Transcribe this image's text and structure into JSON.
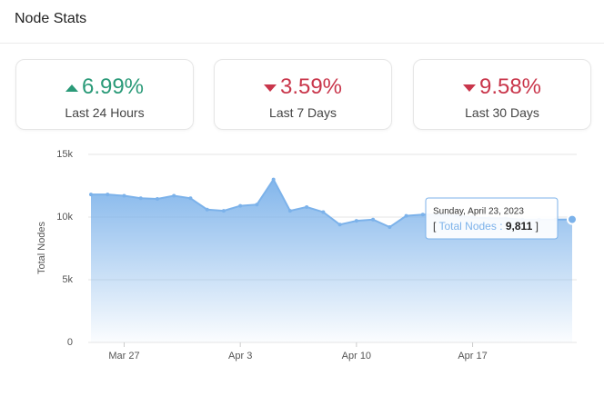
{
  "header": {
    "title": "Node Stats"
  },
  "stats": [
    {
      "value": "6.99%",
      "label": "Last 24 Hours",
      "direction": "up",
      "color": "#2a9a78"
    },
    {
      "value": "3.59%",
      "label": "Last 7 Days",
      "direction": "down",
      "color": "#c9364b"
    },
    {
      "value": "9.58%",
      "label": "Last 30 Days",
      "direction": "down",
      "color": "#c9364b"
    }
  ],
  "chart_data": {
    "type": "area",
    "y_label": "Total Nodes",
    "x": [
      "2023-03-25",
      "2023-03-26",
      "2023-03-27",
      "2023-03-28",
      "2023-03-29",
      "2023-03-30",
      "2023-03-31",
      "2023-04-01",
      "2023-04-02",
      "2023-04-03",
      "2023-04-04",
      "2023-04-05",
      "2023-04-06",
      "2023-04-07",
      "2023-04-08",
      "2023-04-09",
      "2023-04-10",
      "2023-04-11",
      "2023-04-12",
      "2023-04-13",
      "2023-04-14",
      "2023-04-15",
      "2023-04-16",
      "2023-04-17",
      "2023-04-18",
      "2023-04-19",
      "2023-04-20",
      "2023-04-21",
      "2023-04-22",
      "2023-04-23"
    ],
    "series": [
      {
        "name": "Total Nodes",
        "color": "#7cb2ea",
        "values": [
          11800,
          11800,
          11700,
          11500,
          11450,
          11700,
          11500,
          10600,
          10500,
          10900,
          11000,
          13000,
          10500,
          10800,
          10400,
          9400,
          9700,
          9800,
          9200,
          10100,
          10200,
          10200,
          10100,
          10000,
          9900,
          9900,
          9800,
          9800,
          9800,
          9811
        ]
      }
    ],
    "xlim": [
      "2023-03-25",
      "2023-04-23"
    ],
    "xticks": [
      {
        "value": "2023-03-27",
        "label": "Mar 27"
      },
      {
        "value": "2023-04-03",
        "label": "Apr 3"
      },
      {
        "value": "2023-04-10",
        "label": "Apr 10"
      },
      {
        "value": "2023-04-17",
        "label": "Apr 17"
      }
    ],
    "ylim": [
      0,
      15000
    ],
    "yticks": [
      0,
      {
        "value": 5000,
        "label": "5k"
      },
      {
        "value": 10000,
        "label": "10k"
      },
      {
        "value": 15000,
        "label": "15k"
      }
    ],
    "grid": true,
    "tooltip": {
      "index": 29,
      "title": "Sunday, April 23, 2023",
      "open": "[",
      "sep": ":",
      "value_label": "9,811",
      "close": "]"
    }
  }
}
